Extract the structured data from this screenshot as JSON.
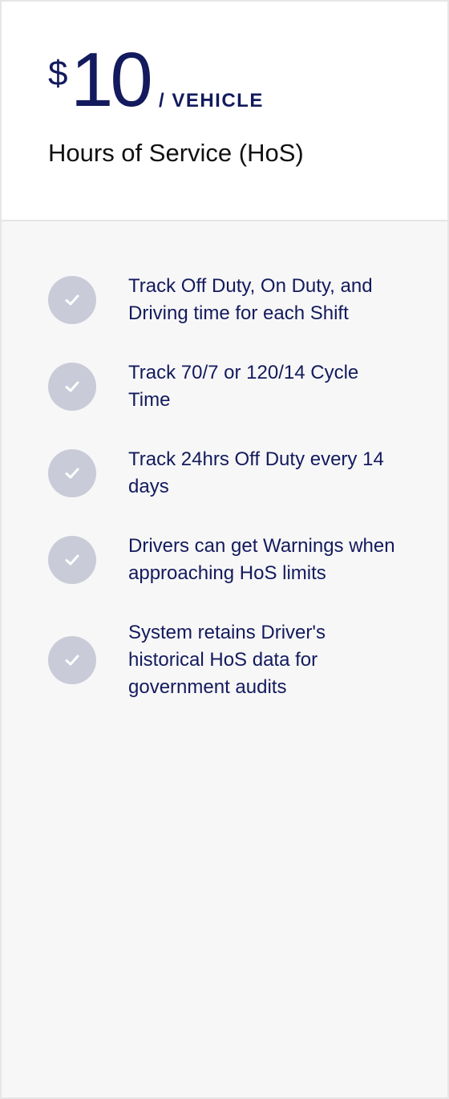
{
  "colors": {
    "price_text": "#131a5d",
    "feature_text": "#131a5d",
    "check_circle_bg": "#c9cbd8",
    "check_mark": "#ffffff",
    "body_bg": "#f7f7f7"
  },
  "header": {
    "currency": "$",
    "amount": "10",
    "per_unit": "/ VEHICLE",
    "plan_name": "Hours of Service (HoS)"
  },
  "features": [
    {
      "icon": "check-icon",
      "text": "Track Off Duty, On Duty, and Driving time for each Shift"
    },
    {
      "icon": "check-icon",
      "text": "Track 70/7 or 120/14 Cycle Time"
    },
    {
      "icon": "check-icon",
      "text": "Track 24hrs Off Duty every 14 days"
    },
    {
      "icon": "check-icon",
      "text": "Drivers can get Warnings when approaching HoS limits"
    },
    {
      "icon": "check-icon",
      "text": "System retains Driver's historical HoS data for government audits"
    }
  ]
}
